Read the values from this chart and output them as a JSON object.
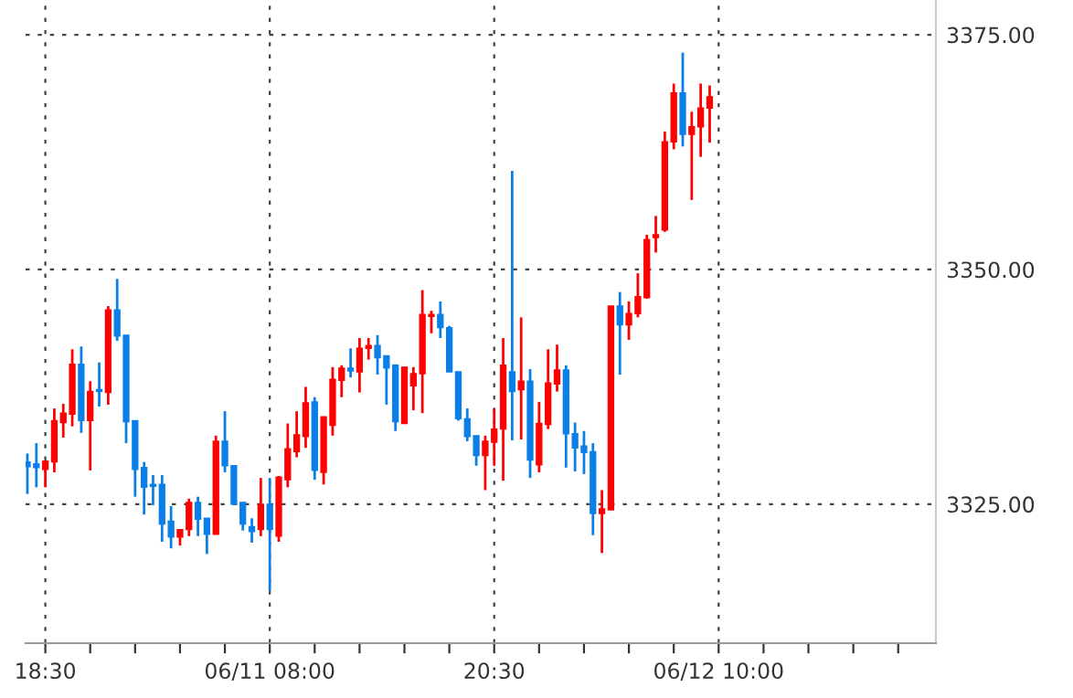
{
  "chart_data": {
    "type": "candlestick",
    "categories": [
      null,
      null,
      "18:30",
      null,
      null,
      null,
      null,
      null,
      null,
      null,
      null,
      null,
      null,
      null,
      null,
      null,
      null,
      null,
      null,
      null,
      null,
      null,
      null,
      null,
      null,
      null,
      null,
      "06/11 08:00",
      null,
      null,
      null,
      null,
      null,
      null,
      null,
      null,
      null,
      null,
      null,
      null,
      null,
      null,
      null,
      null,
      null,
      null,
      null,
      null,
      null,
      null,
      null,
      null,
      "20:30",
      null,
      null,
      null,
      null,
      null,
      null,
      null,
      null,
      null,
      null,
      null,
      null,
      null,
      null,
      null,
      null,
      null,
      null,
      null,
      null,
      null,
      null,
      null,
      null,
      "06/12 10:00",
      null,
      null,
      null,
      null,
      null,
      null,
      null,
      null,
      null,
      null,
      null,
      null,
      null,
      null,
      null,
      null,
      null,
      null,
      null,
      null,
      null,
      null,
      null,
      null
    ],
    "ohlc": [
      [
        3329.5,
        3330.4,
        3326.1,
        3329.0
      ],
      [
        3329.3,
        3331.5,
        3326.8,
        3328.9
      ],
      [
        3328.7,
        3329.6,
        3326.8,
        3329.6
      ],
      [
        3329.5,
        3335.2,
        3328.4,
        3333.9
      ],
      [
        3333.7,
        3335.7,
        3332.1,
        3334.7
      ],
      [
        3334.6,
        3341.5,
        3333.3,
        3339.9
      ],
      [
        3339.9,
        3341.8,
        3332.6,
        3333.9
      ],
      [
        3333.9,
        3338.1,
        3328.6,
        3337.0
      ],
      [
        3337.2,
        3340.1,
        3335.4,
        3337.0
      ],
      [
        3336.9,
        3346.1,
        3335.6,
        3345.7
      ],
      [
        3345.7,
        3349.0,
        3342.4,
        3342.9
      ],
      [
        3343.0,
        3343.0,
        3331.5,
        3333.8
      ],
      [
        3333.9,
        3333.9,
        3325.8,
        3328.7
      ],
      [
        3328.9,
        3329.5,
        3323.9,
        3326.8
      ],
      [
        3327.1,
        3328.1,
        3324.9,
        3326.9
      ],
      [
        3327.1,
        3328.1,
        3321.0,
        3322.9
      ],
      [
        3323.2,
        3324.8,
        3320.3,
        3321.5
      ],
      [
        3321.5,
        3322.3,
        3320.6,
        3322.3
      ],
      [
        3322.3,
        3325.6,
        3321.6,
        3325.2
      ],
      [
        3325.2,
        3325.8,
        3321.6,
        3323.4
      ],
      [
        3323.5,
        3323.5,
        3319.7,
        3321.8
      ],
      [
        3321.8,
        3332.3,
        3321.8,
        3331.7
      ],
      [
        3331.7,
        3334.9,
        3328.4,
        3329.1
      ],
      [
        3329.1,
        3329.1,
        3324.9,
        3325.0
      ],
      [
        3325.2,
        3325.2,
        3322.2,
        3322.9
      ],
      [
        3322.6,
        3323.5,
        3320.9,
        3322.1
      ],
      [
        3322.3,
        3327.8,
        3321.6,
        3325.0
      ],
      [
        3325.0,
        3327.8,
        3315.8,
        3322.3
      ],
      [
        3321.6,
        3328.0,
        3321.0,
        3327.9
      ],
      [
        3327.6,
        3333.6,
        3326.8,
        3330.9
      ],
      [
        3330.6,
        3334.9,
        3330.0,
        3332.4
      ],
      [
        3332.2,
        3337.5,
        3331.0,
        3335.8
      ],
      [
        3335.9,
        3336.4,
        3327.6,
        3328.6
      ],
      [
        3328.4,
        3334.3,
        3327.1,
        3334.3
      ],
      [
        3333.4,
        3339.6,
        3332.3,
        3338.3
      ],
      [
        3338.2,
        3339.8,
        3336.4,
        3339.5
      ],
      [
        3339.5,
        3341.6,
        3338.5,
        3339.2
      ],
      [
        3339.1,
        3342.7,
        3336.9,
        3341.6
      ],
      [
        3341.6,
        3342.7,
        3340.4,
        3341.9
      ],
      [
        3341.9,
        3343.0,
        3338.8,
        3340.6
      ],
      [
        3340.8,
        3340.8,
        3335.6,
        3339.5
      ],
      [
        3339.8,
        3339.9,
        3332.8,
        3333.8
      ],
      [
        3333.6,
        3339.6,
        3333.6,
        3339.6
      ],
      [
        3337.6,
        3339.6,
        3335.0,
        3338.9
      ],
      [
        3338.9,
        3347.8,
        3334.7,
        3345.2
      ],
      [
        3345.0,
        3345.6,
        3343.2,
        3345.2
      ],
      [
        3345.2,
        3346.6,
        3342.7,
        3343.8
      ],
      [
        3343.8,
        3344.0,
        3339.1,
        3339.1
      ],
      [
        3339.1,
        3339.1,
        3333.9,
        3334.1
      ],
      [
        3334.1,
        3335.2,
        3331.7,
        3332.2
      ],
      [
        3332.3,
        3332.3,
        3329.1,
        3330.2
      ],
      [
        3330.2,
        3332.3,
        3326.5,
        3331.7
      ],
      [
        3331.6,
        3335.2,
        3329.1,
        3333.0
      ],
      [
        3333.0,
        3342.7,
        3327.5,
        3339.8
      ],
      [
        3339.1,
        3360.5,
        3331.8,
        3337.0
      ],
      [
        3337.2,
        3344.9,
        3331.9,
        3338.1
      ],
      [
        3338.1,
        3339.4,
        3327.8,
        3329.7
      ],
      [
        3329.2,
        3335.9,
        3328.4,
        3333.6
      ],
      [
        3333.5,
        3341.5,
        3333.0,
        3337.9
      ],
      [
        3337.8,
        3342.0,
        3337.0,
        3339.3
      ],
      [
        3339.3,
        3339.8,
        3328.9,
        3332.5
      ],
      [
        3332.5,
        3333.7,
        3328.5,
        3331.0
      ],
      [
        3331.2,
        3332.8,
        3328.2,
        3330.5
      ],
      [
        3330.6,
        3331.5,
        3321.7,
        3324.0
      ],
      [
        3324.0,
        3326.5,
        3319.8,
        3324.5
      ],
      [
        3324.4,
        3346.1,
        3324.4,
        3346.1
      ],
      [
        3346.1,
        3347.6,
        3338.8,
        3344.1
      ],
      [
        3344.1,
        3346.6,
        3342.5,
        3345.3
      ],
      [
        3345.3,
        3349.6,
        3344.9,
        3347.1
      ],
      [
        3347.0,
        3353.7,
        3346.9,
        3353.2
      ],
      [
        3353.4,
        3355.7,
        3351.8,
        3353.7
      ],
      [
        3354.2,
        3364.7,
        3354.0,
        3363.6
      ],
      [
        3363.6,
        3369.8,
        3362.8,
        3368.8
      ],
      [
        3368.8,
        3373.1,
        3363.1,
        3364.4
      ],
      [
        3364.4,
        3366.8,
        3357.4,
        3365.2
      ],
      [
        3365.2,
        3369.8,
        3362.0,
        3367.2
      ],
      [
        3367.2,
        3369.6,
        3363.5,
        3368.4
      ],
      null,
      null,
      null,
      null,
      null,
      null,
      null,
      null,
      null,
      null,
      null,
      null,
      null,
      null,
      null,
      null,
      null,
      null,
      null,
      null,
      null,
      null,
      null,
      null,
      null
    ],
    "colors": [
      "#0a7fe8",
      "#0a7fe8",
      "#ff0000",
      "#ff0000",
      "#ff0000",
      "#ff0000",
      "#0a7fe8",
      "#ff0000",
      "#0a7fe8",
      "#ff0000",
      "#0a7fe8",
      "#0a7fe8",
      "#0a7fe8",
      "#0a7fe8",
      "#0a7fe8",
      "#0a7fe8",
      "#0a7fe8",
      "#ff0000",
      "#ff0000",
      "#0a7fe8",
      "#0a7fe8",
      "#ff0000",
      "#0a7fe8",
      "#0a7fe8",
      "#0a7fe8",
      "#0a7fe8",
      "#ff0000",
      "#0a7fe8",
      "#ff0000",
      "#ff0000",
      "#ff0000",
      "#ff0000",
      "#0a7fe8",
      "#ff0000",
      "#ff0000",
      "#ff0000",
      "#0a7fe8",
      "#ff0000",
      "#ff0000",
      "#0a7fe8",
      "#0a7fe8",
      "#0a7fe8",
      "#ff0000",
      "#ff0000",
      "#ff0000",
      "#ff0000",
      "#0a7fe8",
      "#0a7fe8",
      "#0a7fe8",
      "#0a7fe8",
      "#0a7fe8",
      "#ff0000",
      "#ff0000",
      "#ff0000",
      "#0a7fe8",
      "#ff0000",
      "#0a7fe8",
      "#ff0000",
      "#ff0000",
      "#ff0000",
      "#0a7fe8",
      "#0a7fe8",
      "#0a7fe8",
      "#0a7fe8",
      "#ff0000",
      "#ff0000",
      "#0a7fe8",
      "#ff0000",
      "#ff0000",
      "#ff0000",
      "#ff0000",
      "#ff0000",
      "#ff0000",
      "#0a7fe8",
      "#ff0000",
      "#ff0000",
      "#ff0000",
      null,
      null,
      null,
      null,
      null,
      null,
      null,
      null,
      null,
      null,
      null,
      null,
      null,
      null,
      null,
      null,
      null,
      null,
      null,
      null,
      null,
      null,
      null,
      null,
      null
    ],
    "ylim": [
      3310.2,
      3378.7
    ],
    "yticks": [
      {
        "value": 3325,
        "label": "3325.00"
      },
      {
        "value": 3350,
        "label": "3350.00"
      },
      {
        "value": 3375,
        "label": "3375.00"
      }
    ],
    "grid": true
  }
}
